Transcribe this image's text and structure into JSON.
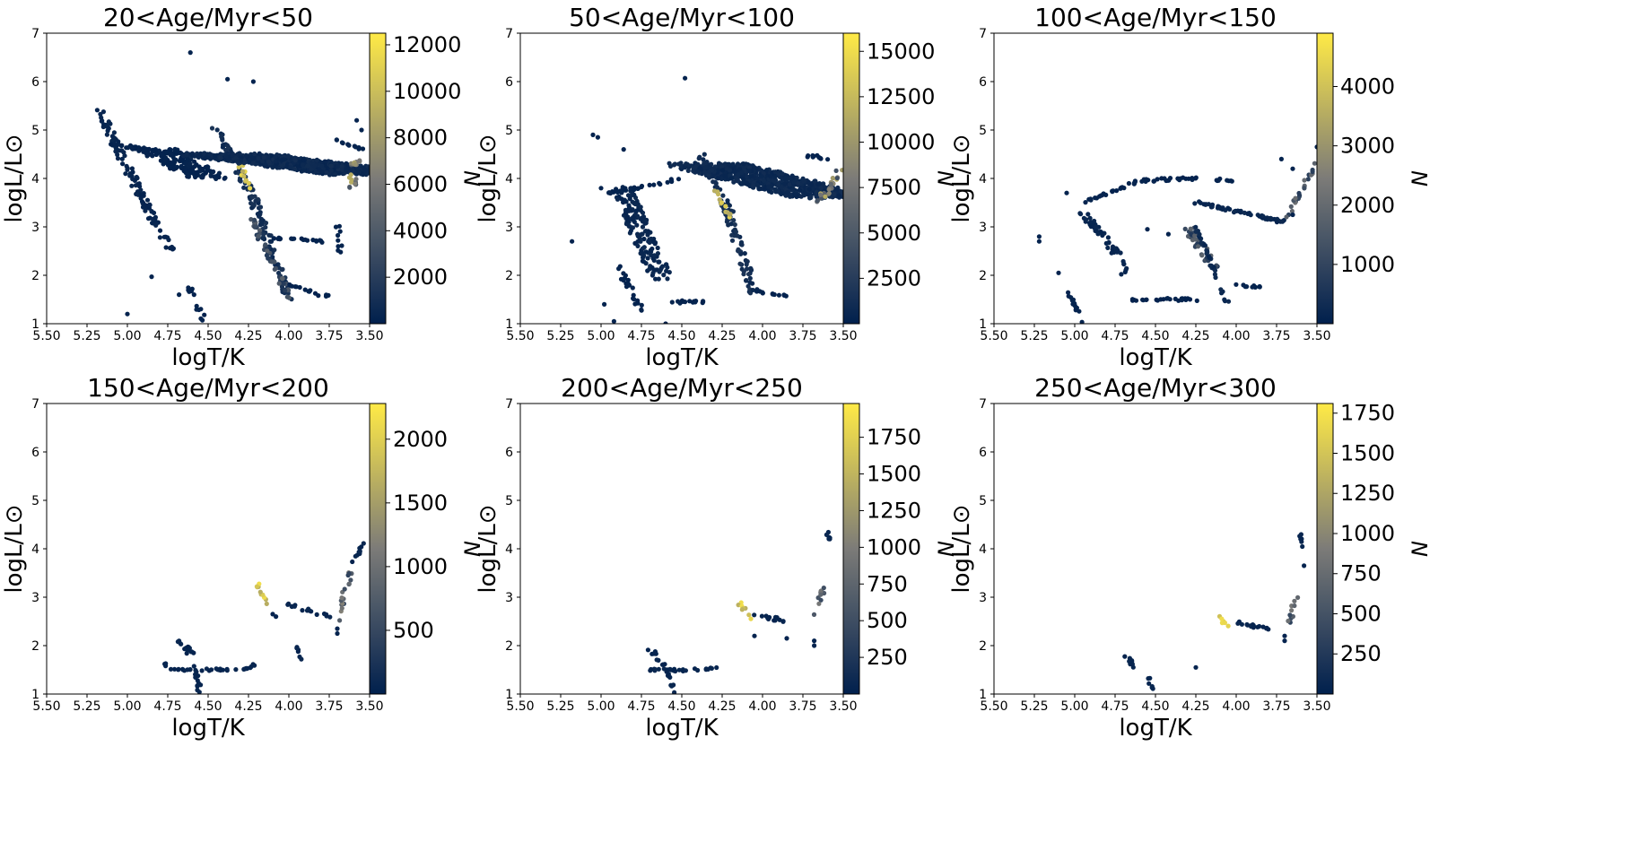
{
  "colormap": {
    "name": "cividis",
    "low": "#00204d",
    "mid": "#7c7b78",
    "high": "#ffea46"
  },
  "chart_data": [
    {
      "type": "heatmap",
      "title": "20<Age/Myr<50",
      "xlabel": "logT/K",
      "ylabel": "logL/L⊙",
      "xlim": [
        5.5,
        3.5
      ],
      "ylim": [
        1,
        7
      ],
      "xticks": [
        "5.50",
        "5.25",
        "5.00",
        "4.75",
        "4.50",
        "4.25",
        "4.00",
        "3.75",
        "3.50"
      ],
      "yticks": [
        "1",
        "2",
        "3",
        "4",
        "5",
        "6",
        "7"
      ],
      "colorbar": {
        "label": "N",
        "vmax": 12500,
        "ticks": [
          2000,
          4000,
          6000,
          8000,
          10000,
          12000
        ]
      },
      "segments": [
        {
          "p": [
            [
              5.18,
              5.45
            ],
            [
              4.85,
              3.2
            ],
            [
              4.72,
              2.5
            ]
          ],
          "w": 0.06,
          "v": 0.03
        },
        {
          "p": [
            [
              5.1,
              4.7
            ],
            [
              4.4,
              4.4
            ]
          ],
          "w": 0.05,
          "v": 0.02
        },
        {
          "p": [
            [
              4.82,
              4.6
            ],
            [
              4.5,
              4.0
            ]
          ],
          "w": 0.25,
          "v": 0.02
        },
        {
          "p": [
            [
              4.46,
              5.1
            ],
            [
              4.22,
              3.6
            ],
            [
              4.0,
              1.5
            ]
          ],
          "w": 0.06,
          "v": 0.08
        },
        {
          "p": [
            [
              4.3,
              4.3
            ],
            [
              4.25,
              3.8
            ]
          ],
          "w": 0.04,
          "v": 0.95
        },
        {
          "p": [
            [
              4.25,
              3.3
            ],
            [
              4.1,
              2.2
            ],
            [
              3.98,
              1.5
            ]
          ],
          "w": 0.04,
          "v": 0.25
        },
        {
          "p": [
            [
              4.4,
              4.5
            ],
            [
              3.5,
              4.1
            ]
          ],
          "w": 0.55,
          "v": 0.05
        },
        {
          "p": [
            [
              3.62,
              3.8
            ],
            [
              3.58,
              4.4
            ]
          ],
          "w": 0.06,
          "v": 0.5
        },
        {
          "p": [
            [
              3.7,
              4.8
            ],
            [
              3.55,
              4.6
            ]
          ],
          "w": 0.04,
          "v": 0.02
        },
        {
          "p": [
            [
              4.15,
              2.8
            ],
            [
              3.8,
              2.7
            ]
          ],
          "w": 0.03,
          "v": 0.02
        },
        {
          "p": [
            [
              4.0,
              1.8
            ],
            [
              3.75,
              1.55
            ]
          ],
          "w": 0.03,
          "v": 0.02
        },
        {
          "p": [
            [
              4.62,
              1.75
            ],
            [
              4.52,
              1.05
            ]
          ],
          "w": 0.03,
          "v": 0.02
        },
        {
          "p": [
            [
              3.7,
              3.0
            ],
            [
              3.68,
              2.5
            ]
          ],
          "w": 0.03,
          "v": 0.02
        }
      ],
      "points": [
        [
          4.61,
          6.6
        ],
        [
          4.38,
          6.05
        ],
        [
          4.22,
          6.0
        ],
        [
          5.0,
          1.2
        ],
        [
          4.85,
          1.97
        ],
        [
          4.68,
          1.6
        ],
        [
          3.58,
          5.2
        ],
        [
          3.55,
          5.0
        ]
      ]
    },
    {
      "type": "heatmap",
      "title": "50<Age/Myr<100",
      "xlabel": "logT/K",
      "ylabel": "logL/L⊙",
      "xlim": [
        5.5,
        3.5
      ],
      "ylim": [
        1,
        7
      ],
      "xticks": [
        "5.50",
        "5.25",
        "5.00",
        "4.75",
        "4.50",
        "4.25",
        "4.00",
        "3.75",
        "3.50"
      ],
      "yticks": [
        "1",
        "2",
        "3",
        "4",
        "5",
        "6",
        "7"
      ],
      "colorbar": {
        "label": "N",
        "vmax": 16000,
        "ticks": [
          2500,
          5000,
          7500,
          10000,
          12500,
          15000
        ]
      },
      "segments": [
        {
          "p": [
            [
              4.88,
              3.8
            ],
            [
              4.7,
              2.5
            ],
            [
              4.62,
              1.9
            ]
          ],
          "w": 0.14,
          "v": 0.04
        },
        {
          "p": [
            [
              4.38,
              4.5
            ],
            [
              4.22,
              3.4
            ],
            [
              4.05,
              1.6
            ]
          ],
          "w": 0.06,
          "v": 0.08
        },
        {
          "p": [
            [
              4.3,
              3.8
            ],
            [
              4.2,
              3.2
            ]
          ],
          "w": 0.03,
          "v": 0.9
        },
        {
          "p": [
            [
              4.35,
              4.3
            ],
            [
              3.55,
              3.6
            ]
          ],
          "w": 0.5,
          "v": 0.05
        },
        {
          "p": [
            [
              3.65,
              3.5
            ],
            [
              3.5,
              4.3
            ]
          ],
          "w": 0.05,
          "v": 0.5
        },
        {
          "p": [
            [
              4.95,
              3.7
            ],
            [
              4.5,
              4.0
            ]
          ],
          "w": 0.03,
          "v": 0.02
        },
        {
          "p": [
            [
              4.55,
              1.45
            ],
            [
              4.35,
              1.45
            ]
          ],
          "w": 0.04,
          "v": 0.02
        },
        {
          "p": [
            [
              4.05,
              1.7
            ],
            [
              3.85,
              1.55
            ]
          ],
          "w": 0.03,
          "v": 0.02
        },
        {
          "p": [
            [
              4.9,
              2.2
            ],
            [
              4.75,
              1.3
            ]
          ],
          "w": 0.04,
          "v": 0.02
        },
        {
          "p": [
            [
              3.75,
              4.5
            ],
            [
              3.6,
              4.4
            ]
          ],
          "w": 0.04,
          "v": 0.02
        }
      ],
      "points": [
        [
          4.48,
          6.07
        ],
        [
          5.05,
          4.9
        ],
        [
          5.02,
          4.85
        ],
        [
          4.86,
          4.6
        ],
        [
          5.0,
          3.8
        ],
        [
          5.18,
          2.7
        ],
        [
          4.98,
          1.4
        ],
        [
          4.92,
          1.05
        ],
        [
          4.6,
          1.0
        ]
      ]
    },
    {
      "type": "heatmap",
      "title": "100<Age/Myr<150",
      "xlabel": "logT/K",
      "ylabel": "logL/L⊙",
      "xlim": [
        5.5,
        3.5
      ],
      "ylim": [
        1,
        7
      ],
      "xticks": [
        "5.50",
        "5.25",
        "5.00",
        "4.75",
        "4.50",
        "4.25",
        "4.00",
        "3.75",
        "3.50"
      ],
      "yticks": [
        "1",
        "2",
        "3",
        "4",
        "5",
        "6",
        "7"
      ],
      "colorbar": {
        "label": "N",
        "vmax": 4900,
        "ticks": [
          1000,
          2000,
          3000,
          4000
        ]
      },
      "segments": [
        {
          "p": [
            [
              4.95,
              3.3
            ],
            [
              4.75,
              2.5
            ],
            [
              4.68,
              2.0
            ]
          ],
          "w": 0.06,
          "v": 0.03
        },
        {
          "p": [
            [
              4.3,
              3.0
            ],
            [
              4.22,
              2.6
            ],
            [
              4.15,
              2.2
            ]
          ],
          "w": 0.07,
          "v": 0.25
        },
        {
          "p": [
            [
              4.25,
              3.0
            ],
            [
              4.05,
              1.4
            ]
          ],
          "w": 0.02,
          "v": 0.05
        },
        {
          "p": [
            [
              4.95,
              3.5
            ],
            [
              4.6,
              3.95
            ],
            [
              4.3,
              4.0
            ],
            [
              3.98,
              3.95
            ]
          ],
          "w": 0.02,
          "v": 0.02
        },
        {
          "p": [
            [
              4.25,
              3.5
            ],
            [
              3.7,
              3.1
            ]
          ],
          "w": 0.06,
          "v": 0.04
        },
        {
          "p": [
            [
              3.68,
              3.2
            ],
            [
              3.58,
              3.9
            ],
            [
              3.5,
              4.3
            ]
          ],
          "w": 0.03,
          "v": 0.3
        },
        {
          "p": [
            [
              4.65,
              1.5
            ],
            [
              4.2,
              1.5
            ]
          ],
          "w": 0.02,
          "v": 0.02
        },
        {
          "p": [
            [
              4.0,
              1.8
            ],
            [
              3.8,
              1.75
            ]
          ],
          "w": 0.02,
          "v": 0.02
        },
        {
          "p": [
            [
              5.05,
              1.7
            ],
            [
              4.95,
              1.05
            ]
          ],
          "w": 0.02,
          "v": 0.02
        }
      ],
      "points": [
        [
          5.22,
          2.8
        ],
        [
          5.22,
          2.7
        ],
        [
          5.1,
          2.05
        ],
        [
          5.05,
          3.7
        ],
        [
          4.55,
          2.95
        ],
        [
          4.42,
          2.85
        ],
        [
          3.72,
          4.4
        ],
        [
          3.65,
          4.2
        ],
        [
          3.5,
          4.65
        ],
        [
          3.65,
          3.25
        ]
      ]
    },
    {
      "type": "heatmap",
      "title": "150<Age/Myr<200",
      "xlabel": "logT/K",
      "ylabel": "logL/L⊙",
      "xlim": [
        5.5,
        3.5
      ],
      "ylim": [
        1,
        7
      ],
      "xticks": [
        "5.50",
        "5.25",
        "5.00",
        "4.75",
        "4.50",
        "4.25",
        "4.00",
        "3.75",
        "3.50"
      ],
      "yticks": [
        "1",
        "2",
        "3",
        "4",
        "5",
        "6",
        "7"
      ],
      "colorbar": {
        "label": "N",
        "vmax": 2280,
        "ticks": [
          500,
          1000,
          1500,
          2000
        ]
      },
      "segments": [
        {
          "p": [
            [
              4.7,
              2.2
            ],
            [
              4.6,
              1.8
            ]
          ],
          "w": 0.05,
          "v": 0.03
        },
        {
          "p": [
            [
              4.78,
              1.65
            ],
            [
              4.72,
              1.5
            ],
            [
              4.3,
              1.5
            ],
            [
              4.2,
              1.6
            ]
          ],
          "w": 0.02,
          "v": 0.03
        },
        {
          "p": [
            [
              4.6,
              1.7
            ],
            [
              4.55,
              1.0
            ]
          ],
          "w": 0.03,
          "v": 0.03
        },
        {
          "p": [
            [
              4.2,
              3.3
            ],
            [
              4.12,
              2.8
            ]
          ],
          "w": 0.03,
          "v": 0.95
        },
        {
          "p": [
            [
              4.0,
              2.85
            ],
            [
              3.75,
              2.6
            ]
          ],
          "w": 0.03,
          "v": 0.03
        },
        {
          "p": [
            [
              3.7,
              2.5
            ],
            [
              3.62,
              3.5
            ]
          ],
          "w": 0.03,
          "v": 0.35
        },
        {
          "p": [
            [
              3.6,
              3.7
            ],
            [
              3.53,
              4.2
            ]
          ],
          "w": 0.02,
          "v": 0.03
        },
        {
          "p": [
            [
              3.95,
              2.0
            ],
            [
              3.92,
              1.7
            ]
          ],
          "w": 0.02,
          "v": 0.03
        }
      ],
      "points": [
        [
          3.7,
          2.25
        ],
        [
          3.7,
          2.35
        ],
        [
          4.1,
          2.65
        ],
        [
          4.08,
          2.6
        ]
      ]
    },
    {
      "type": "heatmap",
      "title": "200<Age/Myr<250",
      "xlabel": "logT/K",
      "ylabel": "logL/L⊙",
      "xlim": [
        5.5,
        3.5
      ],
      "ylim": [
        1,
        7
      ],
      "xticks": [
        "5.50",
        "5.25",
        "5.00",
        "4.75",
        "4.50",
        "4.25",
        "4.00",
        "3.75",
        "3.50"
      ],
      "yticks": [
        "1",
        "2",
        "3",
        "4",
        "5",
        "6",
        "7"
      ],
      "colorbar": {
        "label": "N",
        "vmax": 1980,
        "ticks": [
          250,
          500,
          750,
          1000,
          1250,
          1500,
          1750
        ]
      },
      "segments": [
        {
          "p": [
            [
              4.7,
              1.9
            ],
            [
              4.62,
              1.6
            ]
          ],
          "w": 0.05,
          "v": 0.03
        },
        {
          "p": [
            [
              4.72,
              1.5
            ],
            [
              4.4,
              1.5
            ],
            [
              4.27,
              1.55
            ]
          ],
          "w": 0.02,
          "v": 0.03
        },
        {
          "p": [
            [
              4.6,
              1.55
            ],
            [
              4.54,
              1.0
            ]
          ],
          "w": 0.02,
          "v": 0.03
        },
        {
          "p": [
            [
              4.15,
              2.9
            ],
            [
              4.08,
              2.55
            ]
          ],
          "w": 0.03,
          "v": 0.95
        },
        {
          "p": [
            [
              4.05,
              2.65
            ],
            [
              3.85,
              2.5
            ]
          ],
          "w": 0.04,
          "v": 0.03
        },
        {
          "p": [
            [
              3.68,
              2.6
            ],
            [
              3.62,
              3.2
            ]
          ],
          "w": 0.03,
          "v": 0.35
        },
        {
          "p": [
            [
              3.6,
              4.35
            ],
            [
              3.57,
              4.15
            ]
          ],
          "w": 0.02,
          "v": 0.03
        }
      ],
      "points": [
        [
          3.68,
          2.1
        ],
        [
          3.68,
          2.0
        ],
        [
          3.85,
          2.15
        ],
        [
          4.05,
          2.2
        ]
      ]
    },
    {
      "type": "heatmap",
      "title": "250<Age/Myr<300",
      "xlabel": "logT/K",
      "ylabel": "logL/L⊙",
      "xlim": [
        5.5,
        3.5
      ],
      "ylim": [
        1,
        7
      ],
      "xticks": [
        "5.50",
        "5.25",
        "5.00",
        "4.75",
        "4.50",
        "4.25",
        "4.00",
        "3.75",
        "3.50"
      ],
      "yticks": [
        "1",
        "2",
        "3",
        "4",
        "5",
        "6",
        "7"
      ],
      "colorbar": {
        "label": "N",
        "vmax": 1810,
        "ticks": [
          250,
          500,
          750,
          1000,
          1250,
          1500,
          1750
        ]
      },
      "segments": [
        {
          "p": [
            [
              4.68,
              1.8
            ],
            [
              4.62,
              1.5
            ]
          ],
          "w": 0.04,
          "v": 0.03
        },
        {
          "p": [
            [
              4.55,
              1.4
            ],
            [
              4.52,
              1.1
            ]
          ],
          "w": 0.02,
          "v": 0.03
        },
        {
          "p": [
            [
              4.1,
              2.65
            ],
            [
              4.06,
              2.4
            ]
          ],
          "w": 0.03,
          "v": 0.95
        },
        {
          "p": [
            [
              4.05,
              2.5
            ],
            [
              3.8,
              2.35
            ]
          ],
          "w": 0.04,
          "v": 0.03
        },
        {
          "p": [
            [
              3.67,
              2.45
            ],
            [
              3.63,
              3.0
            ]
          ],
          "w": 0.03,
          "v": 0.35
        },
        {
          "p": [
            [
              3.6,
              4.3
            ],
            [
              3.58,
              4.0
            ]
          ],
          "w": 0.02,
          "v": 0.03
        }
      ],
      "points": [
        [
          3.7,
          2.2
        ],
        [
          3.7,
          2.1
        ],
        [
          4.25,
          1.55
        ],
        [
          3.58,
          3.65
        ]
      ]
    }
  ]
}
